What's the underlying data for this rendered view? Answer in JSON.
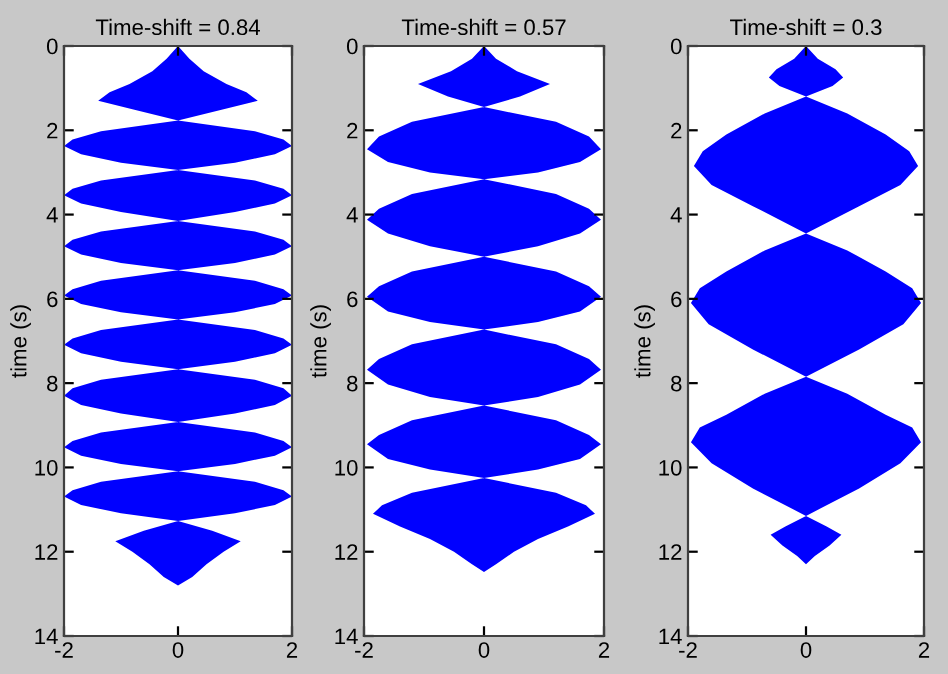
{
  "chart_data": [
    {
      "type": "area",
      "orientation": "horizontal",
      "title": "Time-shift = 0.84",
      "ylabel": "time (s)",
      "xlim": [
        -2,
        2
      ],
      "xticks": [
        -2,
        0,
        2
      ],
      "ylim": [
        14,
        0
      ],
      "yticks": [
        0,
        2,
        4,
        6,
        8,
        10,
        12,
        14
      ],
      "x": [
        0,
        0.3,
        0.6,
        0.9,
        1.1,
        1.3,
        1.5,
        1.77,
        2.02,
        2.22,
        2.37,
        2.57,
        2.77,
        2.94,
        3.19,
        3.39,
        3.54,
        3.74,
        3.94,
        4.15,
        4.4,
        4.6,
        4.75,
        4.95,
        5.15,
        5.32,
        5.57,
        5.77,
        5.92,
        6.12,
        6.32,
        6.49,
        6.74,
        6.94,
        7.09,
        7.29,
        7.49,
        7.67,
        7.92,
        8.12,
        8.3,
        8.52,
        8.72,
        8.92,
        9.17,
        9.37,
        9.52,
        9.72,
        9.92,
        10.09,
        10.34,
        10.54,
        10.69,
        10.89,
        11.09,
        11.27,
        11.5,
        11.75,
        12.0,
        12.3,
        12.6,
        12.8
      ],
      "series": [
        {
          "color": "#0000ff",
          "values": [
            0,
            0.2,
            0.45,
            0.85,
            1.2,
            1.4,
            0.8,
            0,
            1.35,
            1.85,
            2,
            1.7,
            1.0,
            0,
            1.35,
            1.85,
            2,
            1.7,
            1.0,
            0,
            1.35,
            1.85,
            2,
            1.7,
            1.0,
            0,
            1.35,
            1.85,
            2,
            1.7,
            1.0,
            0,
            1.35,
            1.85,
            2,
            1.7,
            1.0,
            0,
            1.35,
            1.85,
            2,
            1.7,
            1.0,
            0,
            1.35,
            1.85,
            2,
            1.7,
            1.0,
            0,
            1.35,
            1.85,
            2,
            1.7,
            1.0,
            0,
            0.6,
            1.1,
            0.8,
            0.5,
            0.25,
            0
          ]
        },
        {
          "color": "#0000ff",
          "values": [
            0,
            -0.2,
            -0.45,
            -0.85,
            -1.2,
            -1.4,
            -0.8,
            0,
            -1.35,
            -1.85,
            -2,
            -1.7,
            -1.0,
            0,
            -1.35,
            -1.85,
            -2,
            -1.7,
            -1.0,
            0,
            -1.35,
            -1.85,
            -2,
            -1.7,
            -1.0,
            0,
            -1.35,
            -1.85,
            -2,
            -1.7,
            -1.0,
            0,
            -1.35,
            -1.85,
            -2,
            -1.7,
            -1.0,
            0,
            -1.35,
            -1.85,
            -2,
            -1.7,
            -1.0,
            0,
            -1.35,
            -1.85,
            -2,
            -1.7,
            -1.0,
            0,
            -1.35,
            -1.85,
            -2,
            -1.7,
            -1.0,
            0,
            -0.6,
            -1.1,
            -0.8,
            -0.5,
            -0.25,
            0
          ]
        }
      ]
    },
    {
      "type": "area",
      "orientation": "horizontal",
      "title": "Time-shift = 0.57",
      "ylabel": "time (s)",
      "xlim": [
        -2,
        2
      ],
      "xticks": [
        -2,
        0,
        2
      ],
      "ylim": [
        14,
        0
      ],
      "yticks": [
        0,
        2,
        4,
        6,
        8,
        10,
        12,
        14
      ],
      "x": [
        0,
        0.3,
        0.6,
        0.9,
        1.2,
        1.45,
        1.8,
        2.15,
        2.45,
        2.75,
        3.0,
        3.16,
        3.51,
        3.86,
        4.12,
        4.45,
        4.75,
        5.0,
        5.35,
        5.7,
        5.95,
        6.3,
        6.55,
        6.73,
        7.08,
        7.43,
        7.68,
        8.03,
        8.33,
        8.53,
        8.88,
        9.23,
        9.45,
        9.8,
        10.05,
        10.25,
        10.6,
        10.9,
        11.1,
        11.4,
        11.7,
        12.0,
        12.3,
        12.48
      ],
      "series": [
        {
          "color": "#0000ff",
          "values": [
            0,
            0.2,
            0.55,
            1.1,
            0.6,
            0,
            1.2,
            1.75,
            1.95,
            1.6,
            0.9,
            0,
            1.2,
            1.75,
            1.95,
            1.6,
            0.9,
            0,
            1.2,
            1.75,
            1.95,
            1.6,
            0.9,
            0,
            1.2,
            1.75,
            1.95,
            1.6,
            0.9,
            0,
            1.2,
            1.75,
            1.95,
            1.6,
            0.9,
            0,
            1.2,
            1.7,
            1.85,
            1.4,
            0.9,
            0.5,
            0.2,
            0
          ]
        },
        {
          "color": "#0000ff",
          "values": [
            0,
            -0.2,
            -0.55,
            -1.1,
            -0.6,
            0,
            -1.2,
            -1.75,
            -1.95,
            -1.6,
            -0.9,
            0,
            -1.2,
            -1.75,
            -1.95,
            -1.6,
            -0.9,
            0,
            -1.2,
            -1.75,
            -1.95,
            -1.6,
            -0.9,
            0,
            -1.2,
            -1.75,
            -1.95,
            -1.6,
            -0.9,
            0,
            -1.2,
            -1.75,
            -1.95,
            -1.6,
            -0.9,
            0,
            -1.2,
            -1.7,
            -1.85,
            -1.4,
            -0.9,
            -0.5,
            -0.2,
            0
          ]
        }
      ]
    },
    {
      "type": "area",
      "orientation": "horizontal",
      "title": "Time-shift = 0.3",
      "ylabel": "time (s)",
      "xlim": [
        -2,
        2
      ],
      "xticks": [
        -2,
        0,
        2
      ],
      "ylim": [
        14,
        0
      ],
      "yticks": [
        0,
        2,
        4,
        6,
        8,
        10,
        12,
        14
      ],
      "x": [
        0,
        0.3,
        0.55,
        0.75,
        0.95,
        1.2,
        1.6,
        2.1,
        2.5,
        2.85,
        3.3,
        3.8,
        4.45,
        4.85,
        5.35,
        5.75,
        6.1,
        6.6,
        7.2,
        7.85,
        8.25,
        8.75,
        9.05,
        9.4,
        9.9,
        10.5,
        11.15,
        11.4,
        11.6,
        11.85,
        12.1,
        12.3
      ],
      "series": [
        {
          "color": "#0000ff",
          "values": [
            0,
            0.2,
            0.5,
            0.63,
            0.45,
            0,
            0.7,
            1.35,
            1.75,
            1.9,
            1.6,
            0.9,
            0,
            0.7,
            1.35,
            1.8,
            1.95,
            1.65,
            0.9,
            0,
            0.7,
            1.35,
            1.8,
            1.95,
            1.6,
            0.9,
            0,
            0.35,
            0.6,
            0.4,
            0.15,
            0
          ]
        },
        {
          "color": "#0000ff",
          "values": [
            0,
            -0.2,
            -0.5,
            -0.63,
            -0.45,
            0,
            -0.7,
            -1.35,
            -1.75,
            -1.9,
            -1.6,
            -0.9,
            0,
            -0.7,
            -1.35,
            -1.8,
            -1.95,
            -1.65,
            -0.9,
            0,
            -0.7,
            -1.35,
            -1.8,
            -1.95,
            -1.6,
            -0.9,
            0,
            -0.35,
            -0.6,
            -0.4,
            -0.15,
            0
          ]
        }
      ]
    }
  ]
}
